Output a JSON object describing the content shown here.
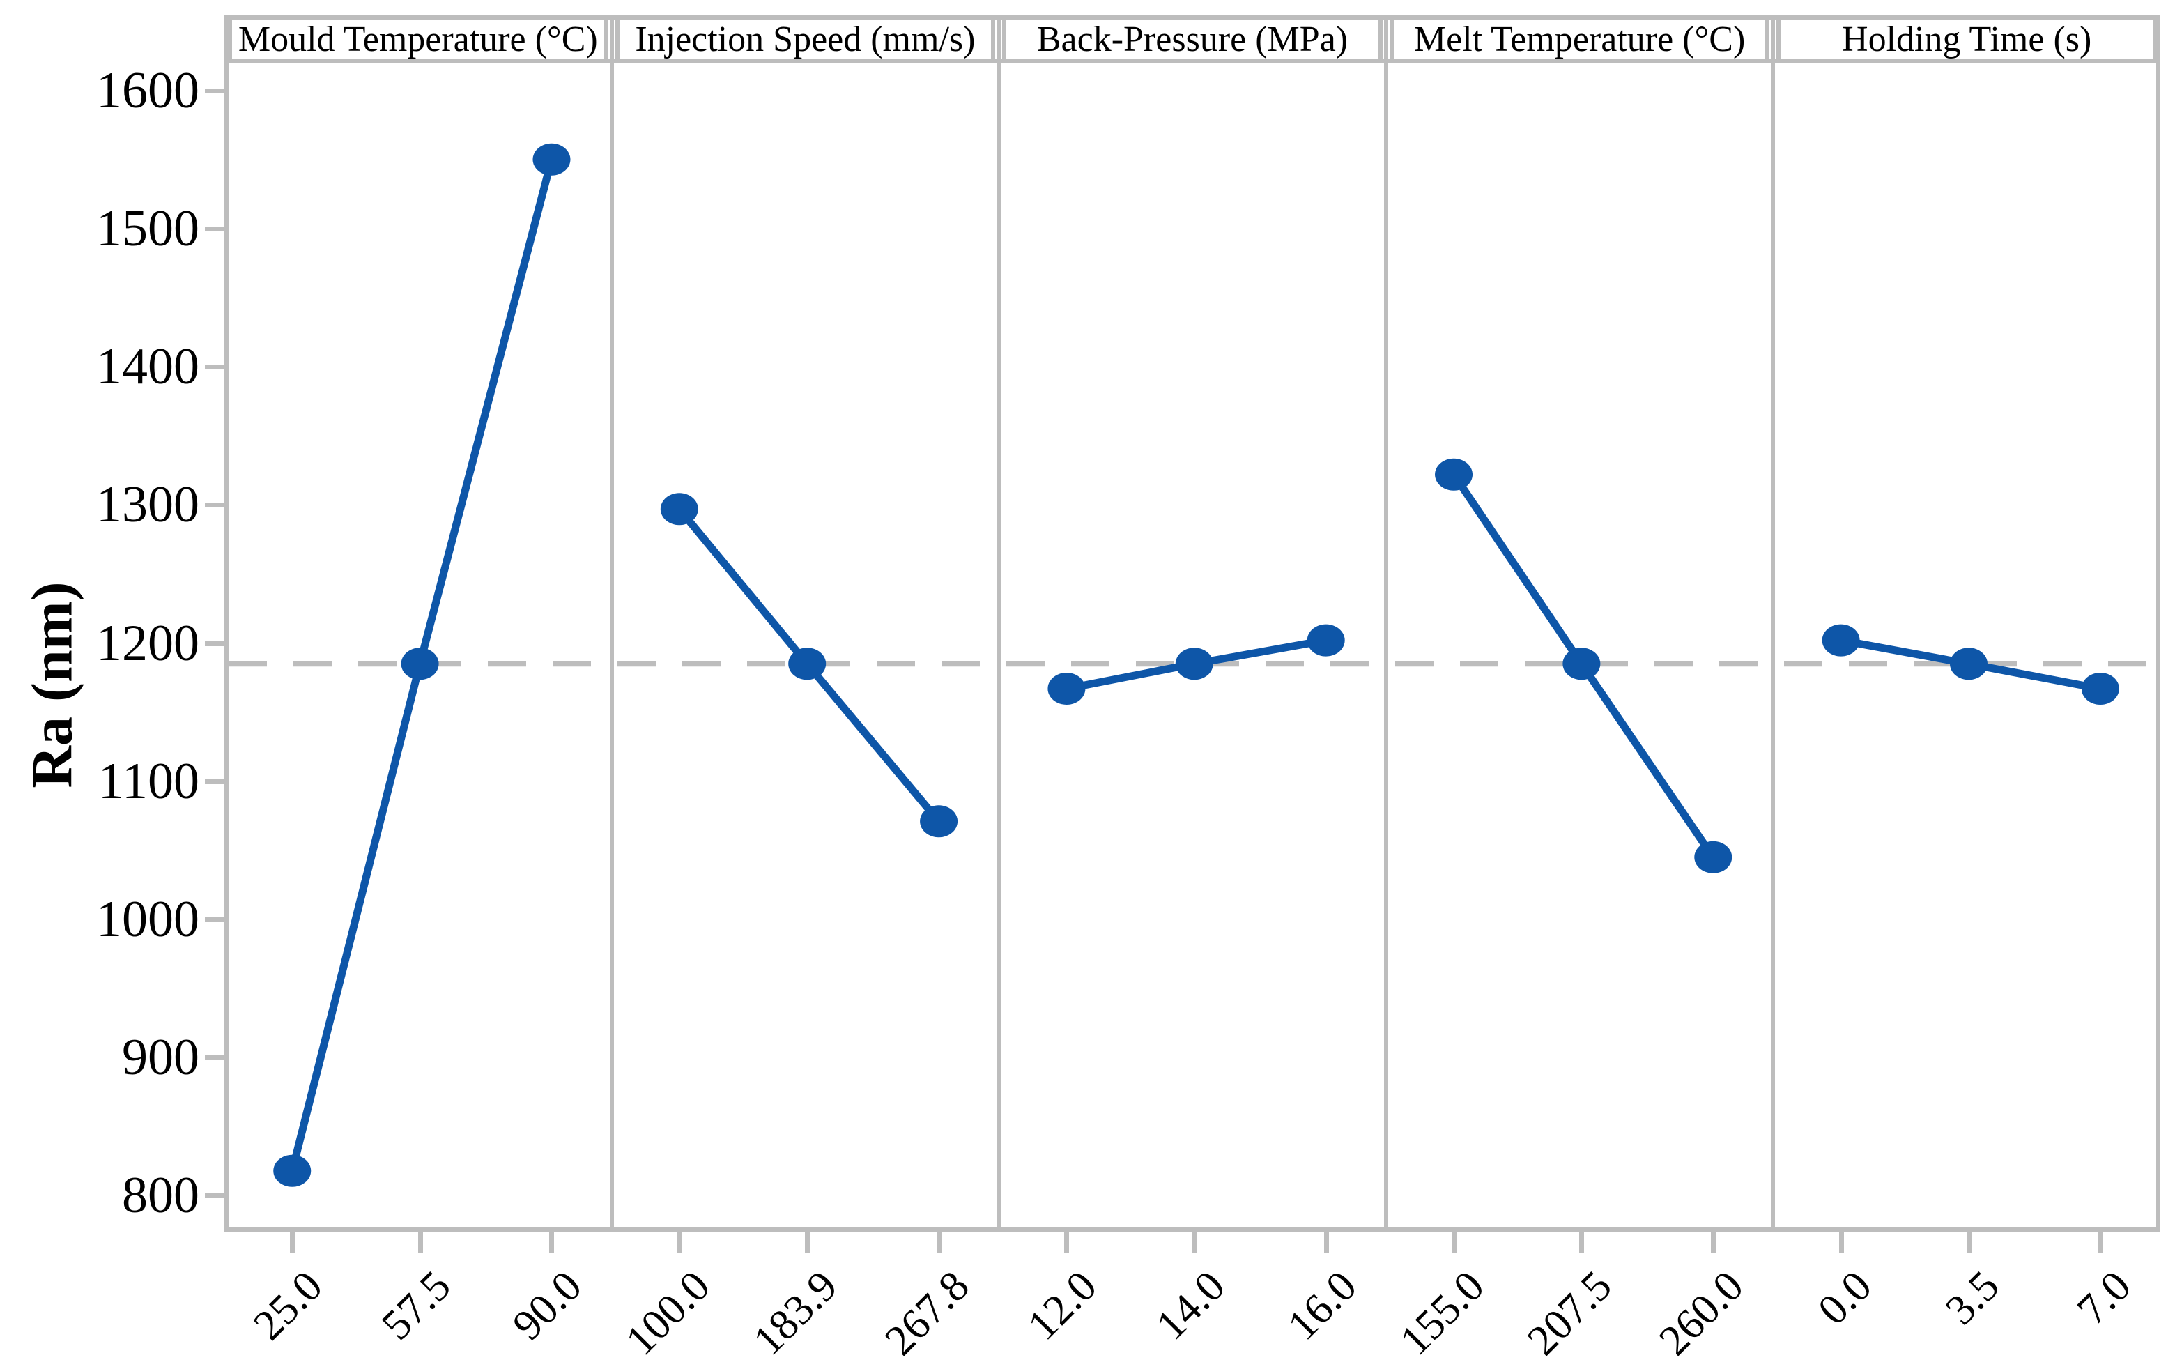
{
  "chart_data": {
    "type": "line",
    "figure_kind": "main-effects-plot",
    "title": "",
    "xlabel": "",
    "ylabel": "Ra (nm)",
    "y_ticks": [
      "1600",
      "1500",
      "1400",
      "1300",
      "1200",
      "1100",
      "1000",
      "900",
      "800"
    ],
    "ylim": [
      774,
      1620
    ],
    "grid": false,
    "legend_position": "none",
    "reference_line": 1185,
    "panels": [
      {
        "label": "Mould Temperature (°C)",
        "categories": [
          "25.0",
          "57.5",
          "90.0"
        ],
        "values": [
          818,
          1185,
          1550
        ]
      },
      {
        "label": "Injection Speed (mm/s)",
        "categories": [
          "100.0",
          "183.9",
          "267.8"
        ],
        "values": [
          1297,
          1185,
          1071
        ]
      },
      {
        "label": "Back-Pressure (MPa)",
        "categories": [
          "12.0",
          "14.0",
          "16.0"
        ],
        "values": [
          1167,
          1185,
          1202
        ]
      },
      {
        "label": "Melt Temperature (°C)",
        "categories": [
          "155.0",
          "207.5",
          "260.0"
        ],
        "values": [
          1322,
          1185,
          1045
        ]
      },
      {
        "label": "Holding Time (s)",
        "categories": [
          "0.0",
          "3.5",
          "7.0"
        ],
        "values": [
          1202,
          1185,
          1167
        ]
      }
    ],
    "colors": {
      "series": "#0E56A8",
      "axis": "#BDBDBD",
      "reference_line": "#BDBDBD",
      "text": "#000000",
      "background": "#FFFFFF"
    }
  }
}
